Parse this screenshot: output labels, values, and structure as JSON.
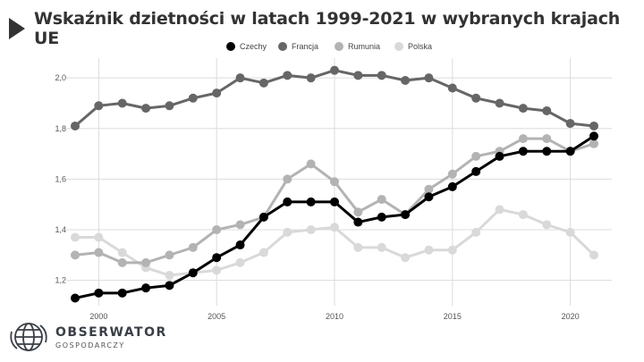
{
  "title": "Wskaźnik dzietności w latach 1999-2021 w wybranych krajach UE",
  "logo": {
    "name": "OBSERWATOR",
    "subtitle": "GOSPODARCZY"
  },
  "chart_data": {
    "type": "line",
    "title": "Wskaźnik dzietności w latach 1999-2021 w wybranych krajach UE",
    "xlabel": "",
    "ylabel": "",
    "x": [
      1999,
      2000,
      2001,
      2002,
      2003,
      2004,
      2005,
      2006,
      2007,
      2008,
      2009,
      2010,
      2011,
      2012,
      2013,
      2014,
      2015,
      2016,
      2017,
      2018,
      2019,
      2020,
      2021
    ],
    "xticks": [
      2000,
      2005,
      2010,
      2015,
      2020
    ],
    "yticks": [
      "1,2",
      "1,4",
      "1,6",
      "1,8",
      "2,0"
    ],
    "ytick_values": [
      1.2,
      1.4,
      1.6,
      1.8,
      2.0
    ],
    "ylim": [
      1.1,
      2.05
    ],
    "xlim": [
      1999,
      2021
    ],
    "grid": true,
    "legend_position": "top",
    "series": [
      {
        "name": "Czechy",
        "color": "#000000",
        "values": [
          1.13,
          1.15,
          1.15,
          1.17,
          1.18,
          1.23,
          1.29,
          1.34,
          1.45,
          1.51,
          1.51,
          1.51,
          1.43,
          1.45,
          1.46,
          1.53,
          1.57,
          1.63,
          1.69,
          1.71,
          1.71,
          1.71,
          1.77
        ]
      },
      {
        "name": "Francja",
        "color": "#666666",
        "values": [
          1.81,
          1.89,
          1.9,
          1.88,
          1.89,
          1.92,
          1.94,
          2.0,
          1.98,
          2.01,
          2.0,
          2.03,
          2.01,
          2.01,
          1.99,
          2.0,
          1.96,
          1.92,
          1.9,
          1.88,
          1.87,
          1.82,
          1.81
        ]
      },
      {
        "name": "Rumunia",
        "color": "#b3b3b3",
        "values": [
          1.3,
          1.31,
          1.27,
          1.27,
          1.3,
          1.33,
          1.4,
          1.42,
          1.45,
          1.6,
          1.66,
          1.59,
          1.47,
          1.52,
          1.46,
          1.56,
          1.62,
          1.69,
          1.71,
          1.76,
          1.76,
          1.71,
          1.74
        ]
      },
      {
        "name": "Polska",
        "color": "#d9d9d9",
        "values": [
          1.37,
          1.37,
          1.31,
          1.25,
          1.22,
          1.23,
          1.24,
          1.27,
          1.31,
          1.39,
          1.4,
          1.41,
          1.33,
          1.33,
          1.29,
          1.32,
          1.32,
          1.39,
          1.48,
          1.46,
          1.42,
          1.39,
          1.3
        ]
      }
    ]
  }
}
